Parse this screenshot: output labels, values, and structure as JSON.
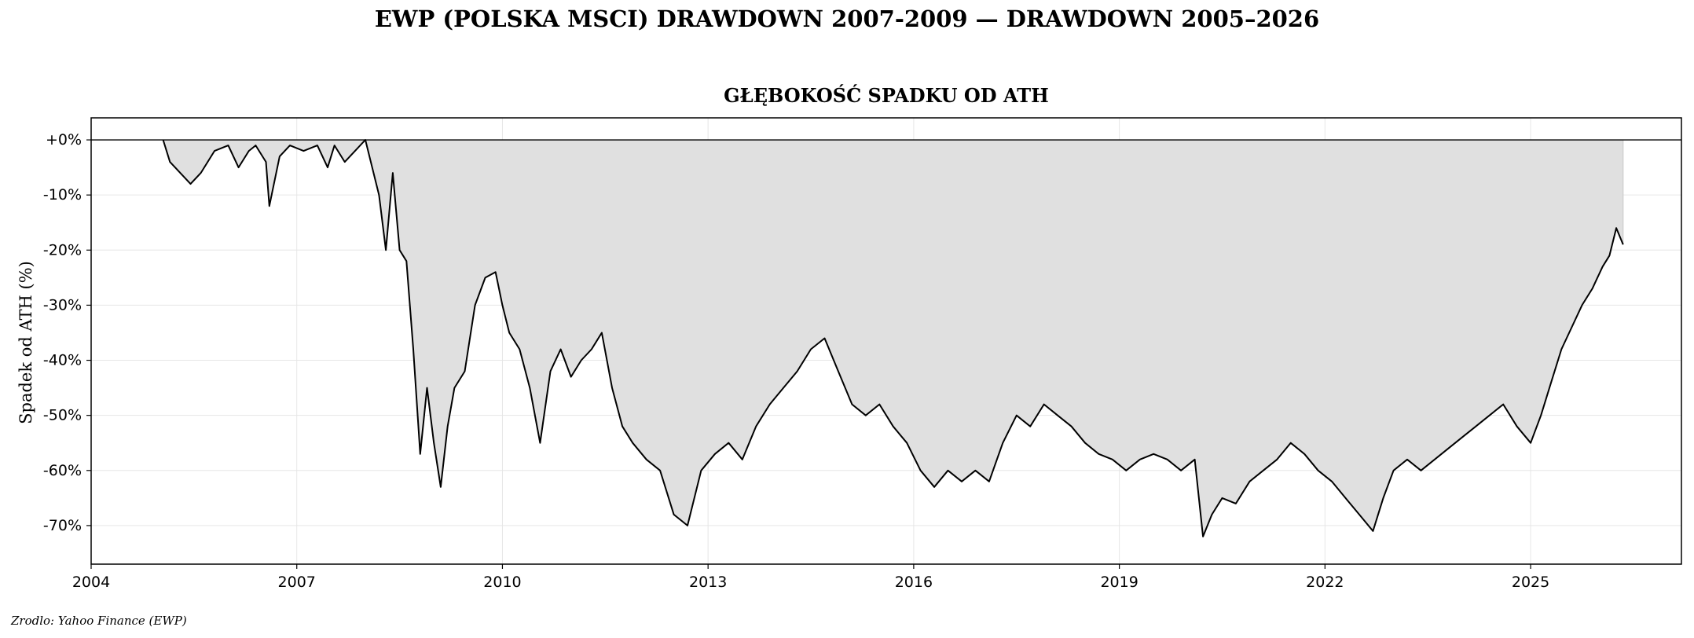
{
  "figure": {
    "suptitle": "EWP (POLSKA MSCI) DRAWDOWN 2007-2009 — DRAWDOWN 2005–2026",
    "source": "Zrodlo: Yahoo Finance (EWP)"
  },
  "chart_data": {
    "type": "area",
    "title": "GŁĘBOKOŚĆ SPADKU OD ATH",
    "xlabel": "",
    "ylabel": "Spadek od ATH (%)",
    "xlim": [
      2004.0,
      2027.2
    ],
    "ylim": [
      -77,
      4
    ],
    "x_ticks": [
      2004,
      2007,
      2010,
      2013,
      2016,
      2019,
      2022,
      2025
    ],
    "x_tick_labels": [
      "2004",
      "2007",
      "2010",
      "2013",
      "2016",
      "2019",
      "2022",
      "2025"
    ],
    "y_ticks": [
      0,
      -10,
      -20,
      -30,
      -40,
      -50,
      -60,
      -70
    ],
    "y_tick_labels": [
      "+0%",
      "-10%",
      "-20%",
      "-30%",
      "-40%",
      "-50%",
      "-60%",
      "-70%"
    ],
    "grid": true,
    "reference_line_y": 0,
    "colors": {
      "line": "#000000",
      "fill": "#e0e0e0",
      "grid": "#e6e6e6"
    },
    "series": [
      {
        "x": [
          2005.05,
          2005.15,
          2005.3,
          2005.45,
          2005.6,
          2005.8,
          2006.0,
          2006.15,
          2006.3,
          2006.4,
          2006.55,
          2006.6,
          2006.75,
          2006.9,
          2007.1,
          2007.3,
          2007.45,
          2007.55,
          2007.7,
          2007.85,
          2008.0,
          2008.1,
          2008.2,
          2008.3,
          2008.4,
          2008.5,
          2008.6,
          2008.7,
          2008.8,
          2008.9,
          2009.0,
          2009.1,
          2009.2,
          2009.3,
          2009.45,
          2009.6,
          2009.75,
          2009.9,
          2010.0,
          2010.1,
          2010.25,
          2010.4,
          2010.55,
          2010.7,
          2010.85,
          2011.0,
          2011.15,
          2011.3,
          2011.45,
          2011.6,
          2011.75,
          2011.9,
          2012.1,
          2012.3,
          2012.5,
          2012.7,
          2012.9,
          2013.1,
          2013.3,
          2013.5,
          2013.7,
          2013.9,
          2014.1,
          2014.3,
          2014.5,
          2014.7,
          2014.9,
          2015.1,
          2015.3,
          2015.5,
          2015.7,
          2015.9,
          2016.1,
          2016.3,
          2016.5,
          2016.7,
          2016.9,
          2017.1,
          2017.3,
          2017.5,
          2017.7,
          2017.9,
          2018.1,
          2018.3,
          2018.5,
          2018.7,
          2018.9,
          2019.1,
          2019.3,
          2019.5,
          2019.7,
          2019.9,
          2020.1,
          2020.22,
          2020.35,
          2020.5,
          2020.7,
          2020.9,
          2021.1,
          2021.3,
          2021.5,
          2021.7,
          2021.9,
          2022.1,
          2022.3,
          2022.5,
          2022.7,
          2022.85,
          2023.0,
          2023.2,
          2023.4,
          2023.6,
          2023.8,
          2024.0,
          2024.2,
          2024.4,
          2024.6,
          2024.8,
          2025.0,
          2025.15,
          2025.3,
          2025.45,
          2025.6,
          2025.75,
          2025.9,
          2026.05,
          2026.15,
          2026.25,
          2026.35
        ],
        "values": [
          0,
          -4,
          -6,
          -8,
          -6,
          -2,
          -1,
          -5,
          -2,
          -1,
          -4,
          -12,
          -3,
          -1,
          -2,
          -1,
          -5,
          -1,
          -4,
          -2,
          0,
          -5,
          -10,
          -20,
          -6,
          -20,
          -22,
          -38,
          -57,
          -45,
          -55,
          -63,
          -52,
          -45,
          -42,
          -30,
          -25,
          -24,
          -30,
          -35,
          -38,
          -45,
          -55,
          -42,
          -38,
          -43,
          -40,
          -38,
          -35,
          -45,
          -52,
          -55,
          -58,
          -60,
          -68,
          -70,
          -60,
          -57,
          -55,
          -58,
          -52,
          -48,
          -45,
          -42,
          -38,
          -36,
          -42,
          -48,
          -50,
          -48,
          -52,
          -55,
          -60,
          -63,
          -60,
          -62,
          -60,
          -62,
          -55,
          -50,
          -52,
          -48,
          -50,
          -52,
          -55,
          -57,
          -58,
          -60,
          -58,
          -57,
          -58,
          -60,
          -58,
          -72,
          -68,
          -65,
          -66,
          -62,
          -60,
          -58,
          -55,
          -57,
          -60,
          -62,
          -65,
          -68,
          -71,
          -65,
          -60,
          -58,
          -60,
          -58,
          -56,
          -54,
          -52,
          -50,
          -48,
          -52,
          -55,
          -50,
          -44,
          -38,
          -34,
          -30,
          -27,
          -23,
          -21,
          -16,
          -19
        ]
      }
    ]
  }
}
